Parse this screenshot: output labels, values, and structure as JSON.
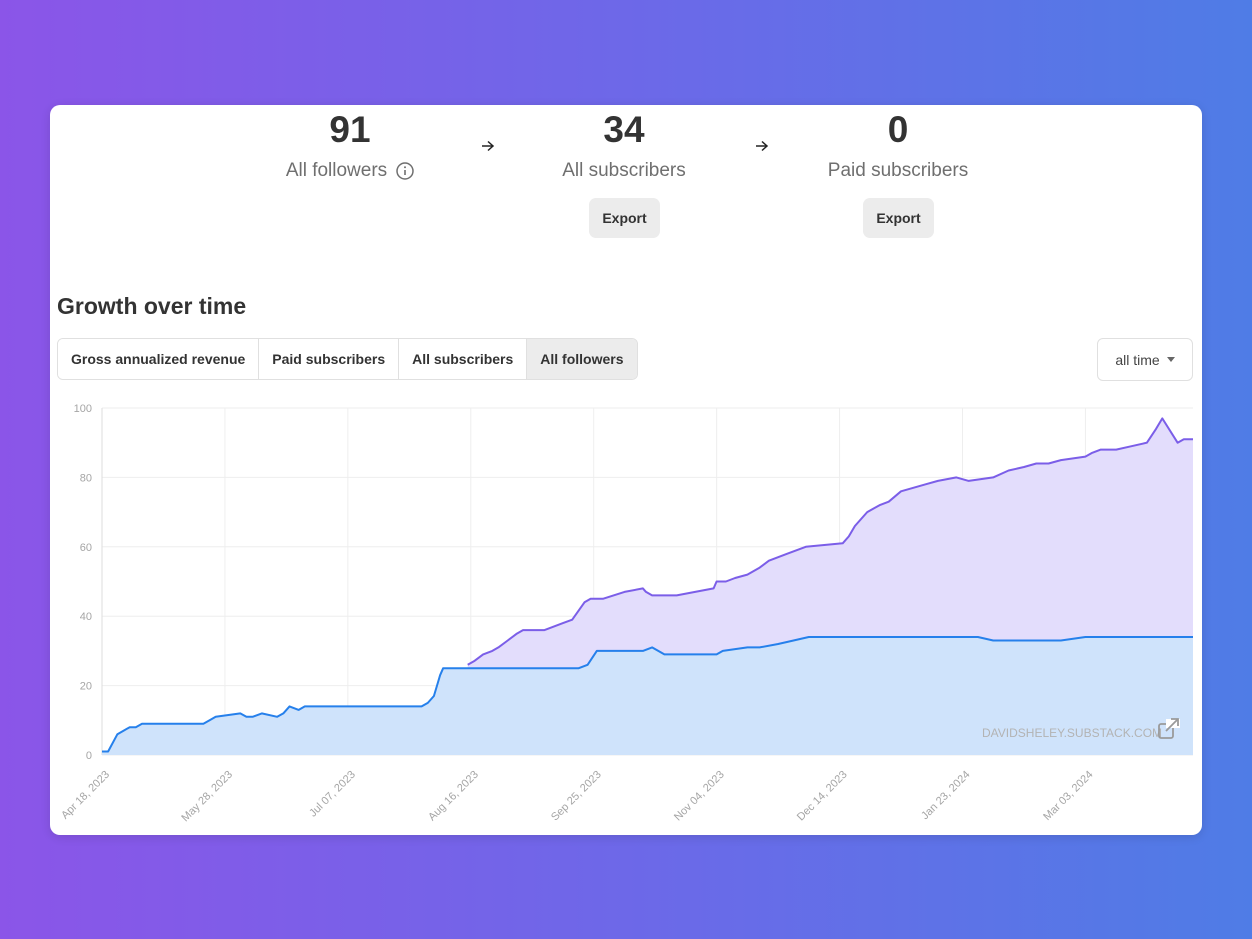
{
  "stats": [
    {
      "value": "91",
      "label": "All followers",
      "has_info": true
    },
    {
      "value": "34",
      "label": "All subscribers",
      "export_label": "Export"
    },
    {
      "value": "0",
      "label": "Paid subscribers",
      "export_label": "Export"
    }
  ],
  "growth": {
    "title": "Growth over time",
    "tabs": [
      "Gross annualized revenue",
      "Paid subscribers",
      "All subscribers",
      "All followers"
    ],
    "active_tab": "All followers",
    "range": "all time"
  },
  "watermark": "DAVIDSHELEY.SUBSTACK.COM",
  "colors": {
    "followers_line": "#7b5ee8",
    "followers_fill": "#e3ddfc",
    "subscribers_line": "#2680eb",
    "subscribers_fill": "#cfe3fb"
  },
  "chart_data": {
    "type": "area",
    "xlabel": "",
    "ylabel": "",
    "ylim": [
      0,
      100
    ],
    "yticks": [
      0,
      20,
      40,
      60,
      80,
      100
    ],
    "x_range_days": [
      0,
      355
    ],
    "x_ticks": [
      {
        "day": 0,
        "label": "Apr 18, 2023"
      },
      {
        "day": 40,
        "label": "May 28, 2023"
      },
      {
        "day": 80,
        "label": "Jul 07, 2023"
      },
      {
        "day": 120,
        "label": "Aug 16, 2023"
      },
      {
        "day": 160,
        "label": "Sep 25, 2023"
      },
      {
        "day": 200,
        "label": "Nov 04, 2023"
      },
      {
        "day": 240,
        "label": "Dec 14, 2023"
      },
      {
        "day": 280,
        "label": "Jan 23, 2024"
      },
      {
        "day": 320,
        "label": "Mar 03, 2024"
      }
    ],
    "series": [
      {
        "name": "All followers",
        "x": [
          119,
          121,
          124,
          127,
          129,
          132,
          135,
          137,
          140,
          144,
          150,
          153,
          157,
          159,
          161,
          163,
          170,
          176,
          177,
          179,
          182,
          184,
          187,
          199,
          200,
          203,
          206,
          210,
          214,
          217,
          220,
          223,
          229,
          241,
          243,
          245,
          247,
          249,
          251,
          253,
          256,
          260,
          264,
          268,
          272,
          278,
          282,
          290,
          295,
          300,
          304,
          308,
          312,
          320,
          322,
          325,
          330,
          335,
          340,
          343,
          345,
          350,
          352,
          355
        ],
        "values": [
          26,
          27,
          29,
          30,
          31,
          33,
          35,
          36,
          36,
          36,
          38,
          39,
          44,
          45,
          45,
          45,
          47,
          48,
          47,
          46,
          46,
          46,
          46,
          48,
          50,
          50,
          51,
          52,
          54,
          56,
          57,
          58,
          60,
          61,
          63,
          66,
          68,
          70,
          71,
          72,
          73,
          76,
          77,
          78,
          79,
          80,
          79,
          80,
          82,
          83,
          84,
          84,
          85,
          86,
          87,
          88,
          88,
          89,
          90,
          94,
          97,
          90,
          91,
          91
        ]
      },
      {
        "name": "All subscribers",
        "x": [
          0,
          2,
          5,
          7,
          9,
          11,
          13,
          33,
          35,
          37,
          45,
          47,
          49,
          52,
          57,
          59,
          61,
          64,
          66,
          70,
          104,
          106,
          108,
          109,
          110,
          111,
          155,
          158,
          161,
          176,
          179,
          183,
          195,
          200,
          202,
          210,
          214,
          220,
          225,
          230,
          235,
          260,
          268,
          285,
          290,
          312,
          320,
          330,
          355
        ],
        "values": [
          1,
          1,
          6,
          7,
          8,
          8,
          9,
          9,
          10,
          11,
          12,
          11,
          11,
          12,
          11,
          12,
          14,
          13,
          14,
          14,
          14,
          15,
          17,
          20,
          23,
          25,
          25,
          26,
          30,
          30,
          31,
          29,
          29,
          29,
          30,
          31,
          31,
          32,
          33,
          34,
          34,
          34,
          34,
          34,
          33,
          33,
          34,
          34,
          34
        ]
      }
    ]
  }
}
